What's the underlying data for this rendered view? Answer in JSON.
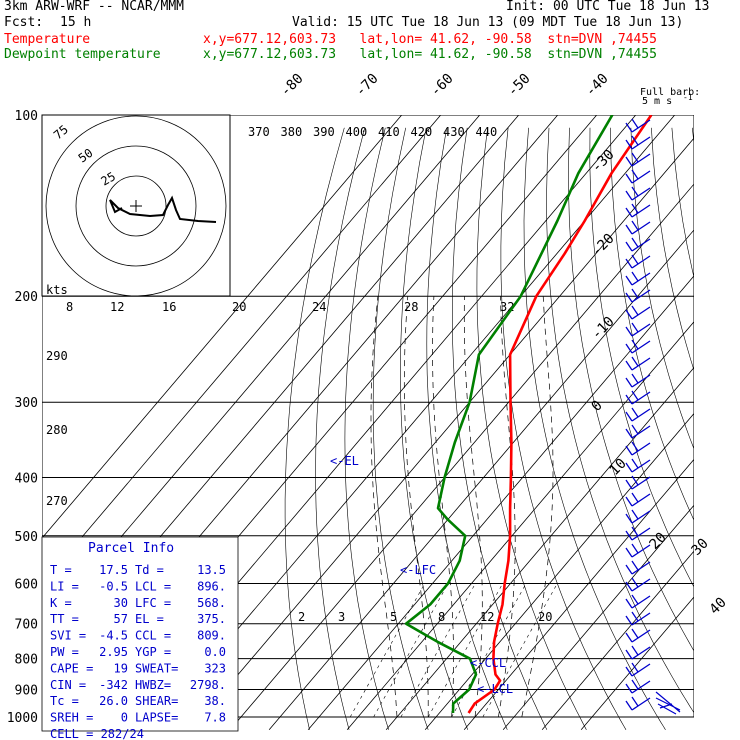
{
  "header": {
    "model": "3km ARW-WRF -- NCAR/MMM",
    "init": "Init: 00 UTC Tue 18 Jun 13",
    "fcst_label": "Fcst:",
    "fcst_value": "15 h",
    "valid": "Valid: 15 UTC Tue 18 Jun 13 (09 MDT Tue 18 Jun 13)",
    "temp_label": "Temperature",
    "dewp_label": "Dewpoint temperature",
    "location": "x,y=677.12,603.73   lat,lon= 41.62, -90.58  stn=DVN ,74455"
  },
  "colors": {
    "temperature": "#ff0000",
    "dewpoint": "#008000",
    "grid": "#000000"
  },
  "wind_legend": {
    "line1": "Full barb:",
    "line2": "5 m s",
    "sup": "-1"
  },
  "hodograph": {
    "units": "kts",
    "ring_labels": [
      "25",
      "50",
      "75"
    ]
  },
  "parcel_info": {
    "title": "Parcel Info",
    "rows": [
      [
        "T  =",
        "17.5",
        "Td =",
        "13.5"
      ],
      [
        "LI =",
        "-0.5",
        "LCL =",
        "896."
      ],
      [
        "K  =",
        "30",
        "LFC =",
        "568."
      ],
      [
        "TT =",
        "57",
        "EL =",
        "375."
      ],
      [
        "SVI =",
        "-4.5",
        "CCL =",
        "809."
      ],
      [
        "PW =",
        "2.95",
        "YGP =",
        "0.0"
      ],
      [
        "CAPE =",
        "19",
        "SWEAT=",
        "323"
      ],
      [
        "CIN =",
        "-342",
        "HWBZ=",
        "2798."
      ],
      [
        "Tc =",
        "26.0",
        "SHEAR=",
        "38."
      ],
      [
        "SREH =",
        "0",
        "LAPSE=",
        "7.8"
      ]
    ],
    "cell": "CELL = 282/24"
  },
  "level_labels": [
    "<-EL",
    "<-LFC",
    "<-CCL",
    "<-LCL"
  ],
  "chart_data": {
    "type": "line",
    "pressure_levels": [
      1000,
      900,
      800,
      700,
      600,
      500,
      400,
      300,
      200,
      100
    ],
    "pressure_axis": "log",
    "pressure_range": [
      1000,
      100
    ],
    "isotherm_labels": [
      "-80",
      "-70",
      "-60",
      "-50",
      "-40",
      "-30",
      "-20",
      "-10",
      "0",
      "10",
      "20",
      "30",
      "40"
    ],
    "theta_labels": [
      "370",
      "380",
      "390",
      "400",
      "410",
      "420",
      "430",
      "440"
    ],
    "mixing_ratio_labels_upper": [
      "8",
      "12",
      "16",
      "20",
      "24",
      "28",
      "32"
    ],
    "mixing_ratio_labels_lower": [
      "2",
      "3",
      "5",
      "8",
      "12",
      "20"
    ],
    "left_theta_labels": [
      "290",
      "280",
      "270"
    ],
    "series": [
      {
        "name": "Temperature",
        "points": [
          {
            "p": 985,
            "t": 17.5
          },
          {
            "p": 950,
            "t": 17.0
          },
          {
            "p": 900,
            "t": 19.0
          },
          {
            "p": 870,
            "t": 18.5
          },
          {
            "p": 850,
            "t": 16.0
          },
          {
            "p": 800,
            "t": 12.0
          },
          {
            "p": 750,
            "t": 8.5
          },
          {
            "p": 700,
            "t": 5.5
          },
          {
            "p": 650,
            "t": 2.5
          },
          {
            "p": 600,
            "t": -1.5
          },
          {
            "p": 550,
            "t": -5.5
          },
          {
            "p": 500,
            "t": -10.5
          },
          {
            "p": 450,
            "t": -16.5
          },
          {
            "p": 400,
            "t": -23.0
          },
          {
            "p": 350,
            "t": -30.5
          },
          {
            "p": 300,
            "t": -39.5
          },
          {
            "p": 250,
            "t": -50.0
          },
          {
            "p": 200,
            "t": -56.0
          },
          {
            "p": 170,
            "t": -58.0
          },
          {
            "p": 150,
            "t": -60.0
          },
          {
            "p": 125,
            "t": -63.5
          },
          {
            "p": 100,
            "t": -66.0
          }
        ]
      },
      {
        "name": "Dewpoint temperature",
        "points": [
          {
            "p": 985,
            "t": 13.5
          },
          {
            "p": 950,
            "t": 11.5
          },
          {
            "p": 900,
            "t": 12.5
          },
          {
            "p": 850,
            "t": 11.0
          },
          {
            "p": 800,
            "t": 6.0
          },
          {
            "p": 750,
            "t": -6.0
          },
          {
            "p": 700,
            "t": -18.0
          },
          {
            "p": 650,
            "t": -16.0
          },
          {
            "p": 600,
            "t": -16.0
          },
          {
            "p": 550,
            "t": -18.0
          },
          {
            "p": 500,
            "t": -22.0
          },
          {
            "p": 470,
            "t": -30.0
          },
          {
            "p": 450,
            "t": -35.0
          },
          {
            "p": 400,
            "t": -40.0
          },
          {
            "p": 350,
            "t": -45.0
          },
          {
            "p": 300,
            "t": -50.0
          },
          {
            "p": 250,
            "t": -58.0
          },
          {
            "p": 200,
            "t": -60.0
          },
          {
            "p": 150,
            "t": -67.0
          },
          {
            "p": 125,
            "t": -72.0
          },
          {
            "p": 100,
            "t": -76.0
          }
        ]
      }
    ]
  }
}
